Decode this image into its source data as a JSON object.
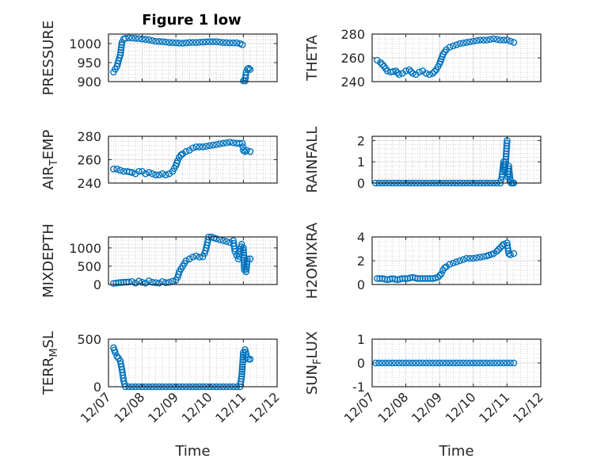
{
  "figure": {
    "title": "Figure 1 low",
    "colors": {
      "marker": "#0072BD",
      "axis": "#262626",
      "grid": "#b0b0b0"
    }
  },
  "chart_data": [
    {
      "id": "pressure",
      "type": "scatter",
      "ylabel": "PRESSURE",
      "ylim": [
        900,
        1025
      ],
      "yticks": [
        900,
        950,
        1000
      ],
      "grid": true,
      "minor_grid": true,
      "show_xticklabels": false,
      "xlim_days": [
        7,
        12
      ],
      "x_day": [
        7.15,
        7.2,
        7.25,
        7.3,
        7.35,
        7.4,
        7.45,
        7.5,
        7.6,
        7.8,
        8.0,
        8.2,
        8.4,
        8.6,
        8.8,
        9.0,
        9.2,
        9.4,
        9.6,
        9.8,
        10.0,
        10.2,
        10.4,
        10.6,
        10.8,
        10.9,
        10.97,
        11.0,
        11.05,
        11.08,
        11.12,
        11.16,
        11.2
      ],
      "y": [
        925,
        933,
        940,
        955,
        970,
        1003,
        1012,
        1014,
        1015,
        1014,
        1012,
        1010,
        1006,
        1005,
        1003,
        1002,
        1001,
        1003,
        1003,
        1004,
        1005,
        1005,
        1003,
        1002,
        1002,
        1000,
        997,
        902,
        902,
        925,
        933,
        935,
        932
      ]
    },
    {
      "id": "theta",
      "type": "scatter",
      "ylabel": "THETA",
      "ylim": [
        240,
        280
      ],
      "yticks": [
        240,
        260,
        280
      ],
      "grid": true,
      "minor_grid": true,
      "show_xticklabels": false,
      "xlim_days": [
        7,
        12
      ],
      "x_day": [
        7.15,
        7.25,
        7.35,
        7.45,
        7.55,
        7.7,
        7.8,
        7.9,
        8.0,
        8.1,
        8.2,
        8.3,
        8.4,
        8.5,
        8.6,
        8.7,
        8.8,
        8.9,
        9.0,
        9.05,
        9.1,
        9.15,
        9.2,
        9.3,
        9.4,
        9.5,
        9.6,
        9.8,
        10.0,
        10.2,
        10.4,
        10.6,
        10.8,
        11.0,
        11.1,
        11.2
      ],
      "y": [
        258,
        256,
        253,
        249,
        248,
        249,
        246,
        247,
        249,
        250,
        247,
        246,
        248,
        249,
        247,
        246,
        247,
        250,
        255,
        259,
        263,
        265,
        267,
        269,
        270,
        271,
        272,
        273,
        274,
        275,
        275,
        276,
        275,
        275,
        274,
        273
      ]
    },
    {
      "id": "air-temp",
      "type": "scatter",
      "ylabel": "AIR_TEMP",
      "ylim": [
        240,
        280
      ],
      "yticks": [
        240,
        260,
        280
      ],
      "grid": true,
      "minor_grid": true,
      "show_xticklabels": false,
      "xlim_days": [
        7,
        12
      ],
      "x_day": [
        7.15,
        7.25,
        7.35,
        7.45,
        7.55,
        7.7,
        7.8,
        7.9,
        8.0,
        8.1,
        8.2,
        8.3,
        8.4,
        8.5,
        8.6,
        8.7,
        8.8,
        8.9,
        9.0,
        9.05,
        9.1,
        9.15,
        9.2,
        9.3,
        9.4,
        9.5,
        9.6,
        9.8,
        10.0,
        10.2,
        10.4,
        10.6,
        10.8,
        10.97,
        11.0,
        11.05,
        11.1,
        11.2
      ],
      "y": [
        252,
        252,
        251,
        250,
        250,
        249,
        248,
        250,
        250,
        248,
        249,
        248,
        247,
        247,
        248,
        247,
        248,
        250,
        255,
        259,
        262,
        264,
        265,
        267,
        268,
        270,
        271,
        271,
        272,
        273,
        274,
        275,
        274,
        274,
        268,
        267,
        268,
        267
      ]
    },
    {
      "id": "rainfall",
      "type": "scatter",
      "ylabel": "RAINFALL",
      "ylim": [
        0,
        2.2
      ],
      "yticks": [
        0,
        1,
        2
      ],
      "grid": true,
      "minor_grid": true,
      "show_xticklabels": false,
      "xlim_days": [
        7,
        12
      ],
      "x_day": [
        7.1,
        7.3,
        7.5,
        7.7,
        7.9,
        8.1,
        8.3,
        8.5,
        8.7,
        8.9,
        9.1,
        9.3,
        9.5,
        9.7,
        9.9,
        10.1,
        10.3,
        10.5,
        10.7,
        10.8,
        10.85,
        10.9,
        10.93,
        10.96,
        11.0,
        11.02,
        11.05,
        11.08,
        11.12,
        11.16,
        11.2
      ],
      "y": [
        0,
        0,
        0,
        0,
        0,
        0,
        0,
        0,
        0,
        0,
        0,
        0,
        0,
        0,
        0,
        0,
        0,
        0,
        0,
        0,
        0.3,
        1.0,
        0.6,
        1.0,
        2.0,
        0.3,
        0.8,
        0.3,
        0,
        0,
        0
      ]
    },
    {
      "id": "mixdepth",
      "type": "scatter",
      "ylabel": "MIXDEPTH",
      "ylim": [
        0,
        1300
      ],
      "yticks": [
        0,
        500,
        1000
      ],
      "grid": true,
      "minor_grid": true,
      "show_xticklabels": false,
      "xlim_days": [
        7,
        12
      ],
      "x_day": [
        7.15,
        7.3,
        7.45,
        7.6,
        7.7,
        7.8,
        7.9,
        8.0,
        8.1,
        8.2,
        8.3,
        8.4,
        8.5,
        8.6,
        8.7,
        8.8,
        8.9,
        9.0,
        9.05,
        9.1,
        9.2,
        9.3,
        9.4,
        9.5,
        9.6,
        9.7,
        9.8,
        9.85,
        9.9,
        9.97,
        10.05,
        10.2,
        10.4,
        10.6,
        10.7,
        10.75,
        10.8,
        10.85,
        10.95,
        11.0,
        11.03,
        11.08,
        11.12,
        11.2
      ],
      "y": [
        30,
        50,
        60,
        70,
        80,
        40,
        90,
        60,
        40,
        100,
        60,
        50,
        40,
        80,
        50,
        60,
        90,
        120,
        200,
        350,
        500,
        650,
        700,
        750,
        780,
        750,
        760,
        850,
        1000,
        1300,
        1300,
        1250,
        1200,
        1150,
        1200,
        900,
        800,
        700,
        1100,
        1000,
        400,
        350,
        700,
        700
      ]
    },
    {
      "id": "h2omixra",
      "type": "scatter",
      "ylabel": "H2OMIXRA",
      "ylim": [
        0,
        4
      ],
      "yticks": [
        0,
        2,
        4
      ],
      "grid": true,
      "minor_grid": true,
      "show_xticklabels": false,
      "xlim_days": [
        7,
        12
      ],
      "x_day": [
        7.15,
        7.3,
        7.45,
        7.6,
        7.75,
        7.9,
        8.05,
        8.2,
        8.35,
        8.5,
        8.65,
        8.8,
        8.95,
        9.05,
        9.1,
        9.15,
        9.2,
        9.3,
        9.4,
        9.5,
        9.6,
        9.7,
        9.8,
        10.0,
        10.2,
        10.4,
        10.6,
        10.7,
        10.8,
        10.9,
        11.0,
        11.05,
        11.1,
        11.2
      ],
      "y": [
        0.5,
        0.5,
        0.4,
        0.5,
        0.4,
        0.5,
        0.5,
        0.6,
        0.5,
        0.5,
        0.5,
        0.5,
        0.6,
        0.9,
        1.2,
        1.4,
        1.5,
        1.7,
        1.8,
        1.9,
        2.0,
        2.1,
        2.2,
        2.2,
        2.3,
        2.4,
        2.6,
        2.8,
        3.1,
        3.4,
        3.5,
        2.6,
        2.5,
        2.6
      ]
    },
    {
      "id": "terr-msl",
      "type": "scatter",
      "ylabel": "TERR_MSL",
      "ylim": [
        0,
        500
      ],
      "yticks": [
        0,
        500
      ],
      "grid": true,
      "minor_grid": true,
      "show_xticklabels": true,
      "xlabel": "Time",
      "xticks": [
        "12/07",
        "12/08",
        "12/09",
        "12/10",
        "12/11",
        "12/12"
      ],
      "xlim_days": [
        7,
        12
      ],
      "x_day": [
        7.15,
        7.2,
        7.25,
        7.3,
        7.35,
        7.4,
        7.45,
        7.5,
        7.6,
        7.8,
        8.0,
        8.2,
        8.4,
        8.6,
        8.8,
        9.0,
        9.2,
        9.4,
        9.6,
        9.8,
        10.0,
        10.2,
        10.4,
        10.6,
        10.8,
        10.9,
        10.95,
        11.0,
        11.05,
        11.1,
        11.15,
        11.2
      ],
      "y": [
        410,
        360,
        320,
        300,
        270,
        180,
        60,
        0,
        0,
        0,
        0,
        0,
        0,
        0,
        0,
        0,
        0,
        0,
        0,
        0,
        0,
        0,
        0,
        0,
        0,
        0,
        110,
        360,
        390,
        310,
        290,
        290
      ]
    },
    {
      "id": "sun-flux",
      "type": "scatter",
      "ylabel": "SUN_FLUX",
      "ylim": [
        -1,
        1
      ],
      "yticks": [
        -1,
        0,
        1
      ],
      "grid": true,
      "minor_grid": true,
      "show_xticklabels": true,
      "xlabel": "Time",
      "xticks": [
        "12/07",
        "12/08",
        "12/09",
        "12/10",
        "12/11",
        "12/12"
      ],
      "xlim_days": [
        7,
        12
      ],
      "x_day": [
        7.1,
        7.3,
        7.5,
        7.7,
        7.9,
        8.1,
        8.3,
        8.5,
        8.7,
        8.9,
        9.1,
        9.3,
        9.5,
        9.7,
        9.9,
        10.1,
        10.3,
        10.5,
        10.7,
        10.9,
        11.1,
        11.2
      ],
      "y": [
        0,
        0,
        0,
        0,
        0,
        0,
        0,
        0,
        0,
        0,
        0,
        0,
        0,
        0,
        0,
        0,
        0,
        0,
        0,
        0,
        0,
        0
      ]
    }
  ]
}
